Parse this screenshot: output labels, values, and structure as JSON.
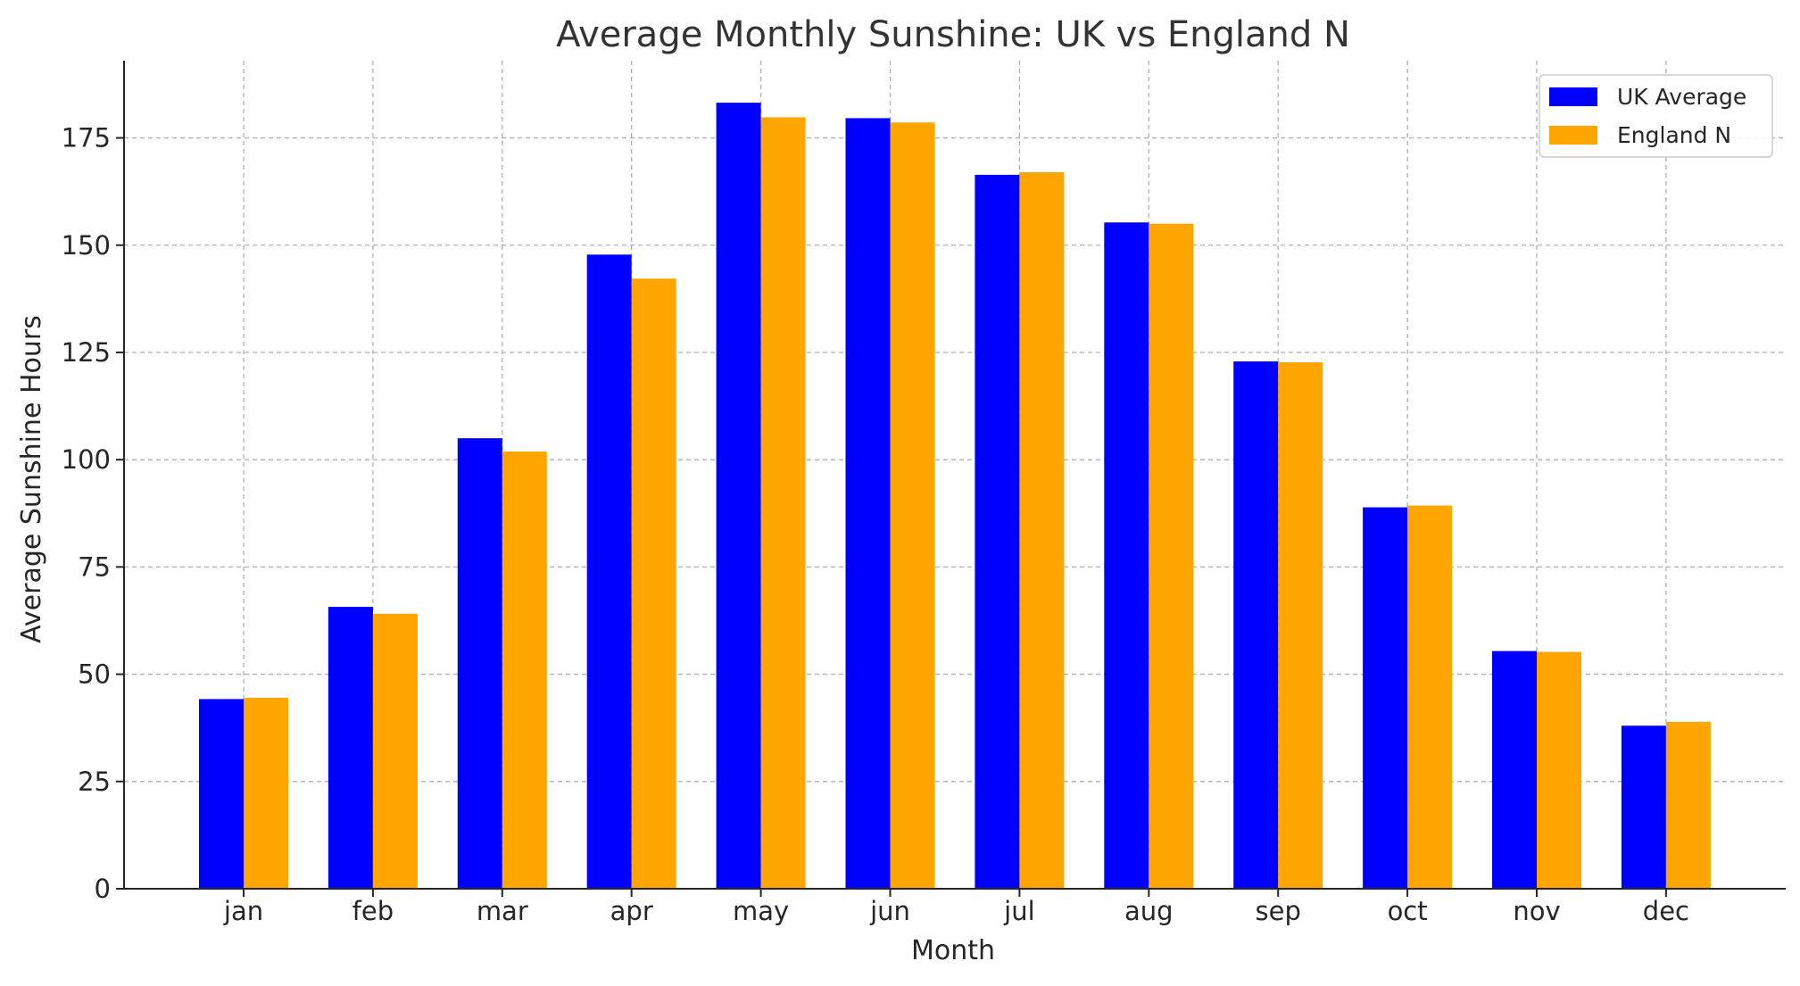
{
  "chart_data": {
    "type": "bar",
    "title": "Average Monthly Sunshine: UK vs England N",
    "xlabel": "Month",
    "ylabel": "Average Sunshine Hours",
    "categories": [
      "jan",
      "feb",
      "mar",
      "apr",
      "may",
      "jun",
      "jul",
      "aug",
      "sep",
      "oct",
      "nov",
      "dec"
    ],
    "series": [
      {
        "name": "UK Average",
        "color": "#0000ff",
        "values": [
          44.2,
          65.7,
          105.0,
          147.8,
          183.2,
          179.6,
          166.4,
          155.3,
          122.9,
          88.9,
          55.4,
          38.0
        ]
      },
      {
        "name": "England N",
        "color": "#ffa500",
        "values": [
          44.5,
          64.1,
          101.9,
          142.2,
          179.8,
          178.6,
          167.0,
          155.0,
          122.7,
          89.3,
          55.2,
          38.9
        ]
      }
    ],
    "ylim": [
      0,
      193
    ],
    "yticks": [
      0,
      25,
      50,
      75,
      100,
      125,
      150,
      175
    ],
    "grid": true,
    "legend_position": "top-right"
  }
}
